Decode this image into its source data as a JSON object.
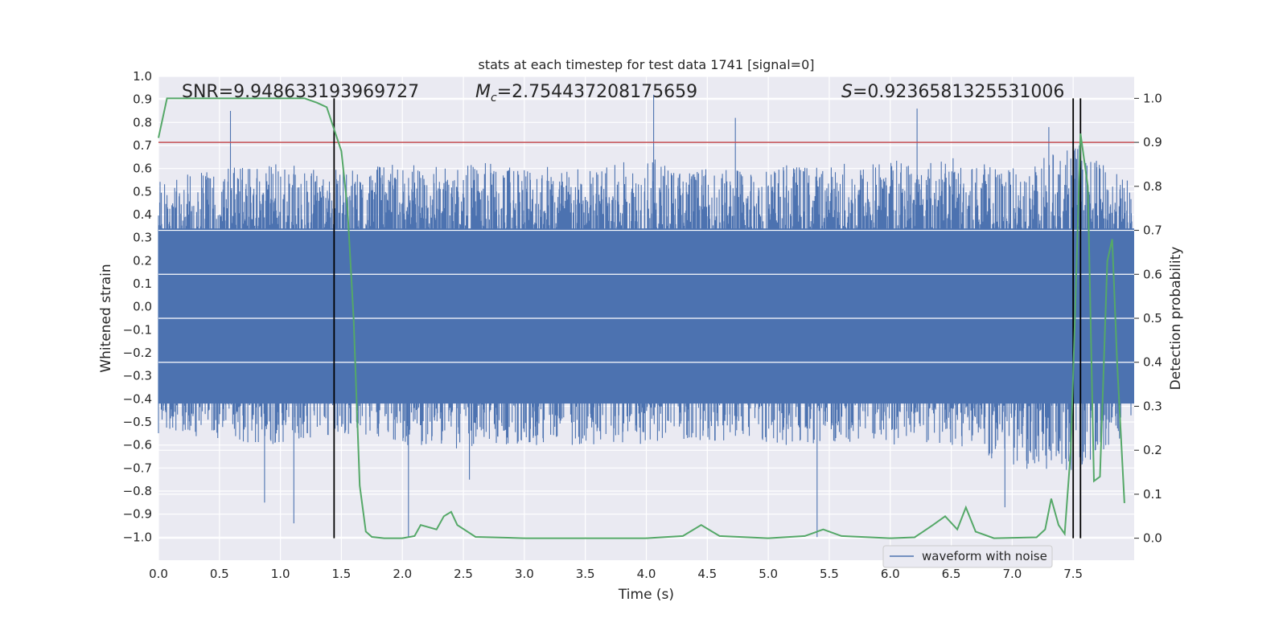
{
  "chart_data": {
    "type": "line",
    "title": "stats at each timestep for test data 1741 [signal=0]",
    "xlabel": "Time (s)",
    "ylabel": "Whitened strain",
    "y2label": "Detection probability",
    "xlim": [
      0.0,
      8.0
    ],
    "ylim": [
      -1.1,
      1.0
    ],
    "y2lim": [
      -0.05,
      1.05
    ],
    "xticks": [
      "0.0",
      "0.5",
      "1.0",
      "1.5",
      "2.0",
      "2.5",
      "3.0",
      "3.5",
      "4.0",
      "4.5",
      "5.0",
      "5.5",
      "6.0",
      "6.5",
      "7.0",
      "7.5"
    ],
    "yticks": [
      "1.0",
      "0.9",
      "0.8",
      "0.7",
      "0.6",
      "0.5",
      "0.4",
      "0.3",
      "0.2",
      "0.1",
      "0.0",
      "−0.1",
      "−0.2",
      "−0.3",
      "−0.4",
      "−0.5",
      "−0.6",
      "−0.7",
      "−0.8",
      "−0.9",
      "−1.0"
    ],
    "y2ticks": [
      "1.0",
      "0.9",
      "0.8",
      "0.7",
      "0.6",
      "0.5",
      "0.4",
      "0.3",
      "0.2",
      "0.1",
      "0.0"
    ],
    "annotations": {
      "snr": "SNR=9.948633193969727",
      "mc_prefix": "M",
      "mc_sub": "c",
      "mc_value": "=2.754437208175659",
      "s_prefix": "S",
      "s_value": "=0.9236581325531006"
    },
    "threshold": {
      "value": 0.9,
      "color": "#c44e52"
    },
    "vertical_markers": [
      1.44,
      7.5,
      7.56
    ],
    "waveform": {
      "name": "waveform with noise",
      "color": "#4c72b0",
      "envelope_x": [
        0.0,
        0.5,
        1.0,
        1.5,
        2.0,
        2.5,
        3.0,
        3.5,
        4.0,
        4.5,
        5.0,
        5.5,
        6.0,
        6.5,
        7.0,
        7.5,
        7.95
      ],
      "envelope_max": [
        0.55,
        0.6,
        0.62,
        0.6,
        0.62,
        0.62,
        0.65,
        0.6,
        0.65,
        0.6,
        0.62,
        0.62,
        0.65,
        0.65,
        0.6,
        0.7,
        0.55
      ],
      "envelope_min": [
        -0.55,
        -0.58,
        -0.6,
        -0.55,
        -0.6,
        -0.62,
        -0.6,
        -0.6,
        -0.6,
        -0.58,
        -0.6,
        -0.6,
        -0.6,
        -0.6,
        -0.7,
        -0.72,
        -0.55
      ],
      "spikes": [
        {
          "x": 0.59,
          "y": 0.85
        },
        {
          "x": 0.87,
          "y": -0.85
        },
        {
          "x": 1.11,
          "y": -0.94
        },
        {
          "x": 2.05,
          "y": -1.0
        },
        {
          "x": 2.55,
          "y": -0.75
        },
        {
          "x": 4.06,
          "y": 0.92
        },
        {
          "x": 4.73,
          "y": 0.82
        },
        {
          "x": 5.4,
          "y": -1.0
        },
        {
          "x": 6.22,
          "y": 0.86
        },
        {
          "x": 7.3,
          "y": 0.78
        },
        {
          "x": 7.55,
          "y": 0.7
        },
        {
          "x": 6.94,
          "y": -0.87
        }
      ]
    },
    "probability": {
      "color": "#55a868",
      "x": [
        0.0,
        0.07,
        0.2,
        0.5,
        1.0,
        1.2,
        1.3,
        1.38,
        1.44,
        1.5,
        1.55,
        1.6,
        1.65,
        1.7,
        1.75,
        1.85,
        2.0,
        2.1,
        2.15,
        2.28,
        2.34,
        2.4,
        2.45,
        2.6,
        3.0,
        3.5,
        4.0,
        4.3,
        4.45,
        4.6,
        5.0,
        5.3,
        5.45,
        5.6,
        6.0,
        6.2,
        6.35,
        6.45,
        6.55,
        6.62,
        6.7,
        6.85,
        7.2,
        7.27,
        7.32,
        7.38,
        7.43,
        7.48,
        7.52,
        7.56,
        7.62,
        7.67,
        7.72,
        7.78,
        7.82,
        7.86,
        7.92
      ],
      "y": [
        0.91,
        1.0,
        1.0,
        1.0,
        1.0,
        1.0,
        0.99,
        0.98,
        0.93,
        0.88,
        0.75,
        0.5,
        0.12,
        0.015,
        0.003,
        0.0,
        0.0,
        0.005,
        0.03,
        0.02,
        0.05,
        0.06,
        0.03,
        0.003,
        0.0,
        0.0,
        0.0,
        0.005,
        0.03,
        0.005,
        0.0,
        0.005,
        0.02,
        0.005,
        0.0,
        0.002,
        0.03,
        0.05,
        0.02,
        0.07,
        0.015,
        0.0,
        0.002,
        0.02,
        0.09,
        0.03,
        0.01,
        0.2,
        0.55,
        0.92,
        0.8,
        0.13,
        0.14,
        0.63,
        0.68,
        0.4,
        0.08
      ]
    },
    "legend": {
      "label": "waveform with noise",
      "location": "lower-right"
    },
    "grid": true
  }
}
